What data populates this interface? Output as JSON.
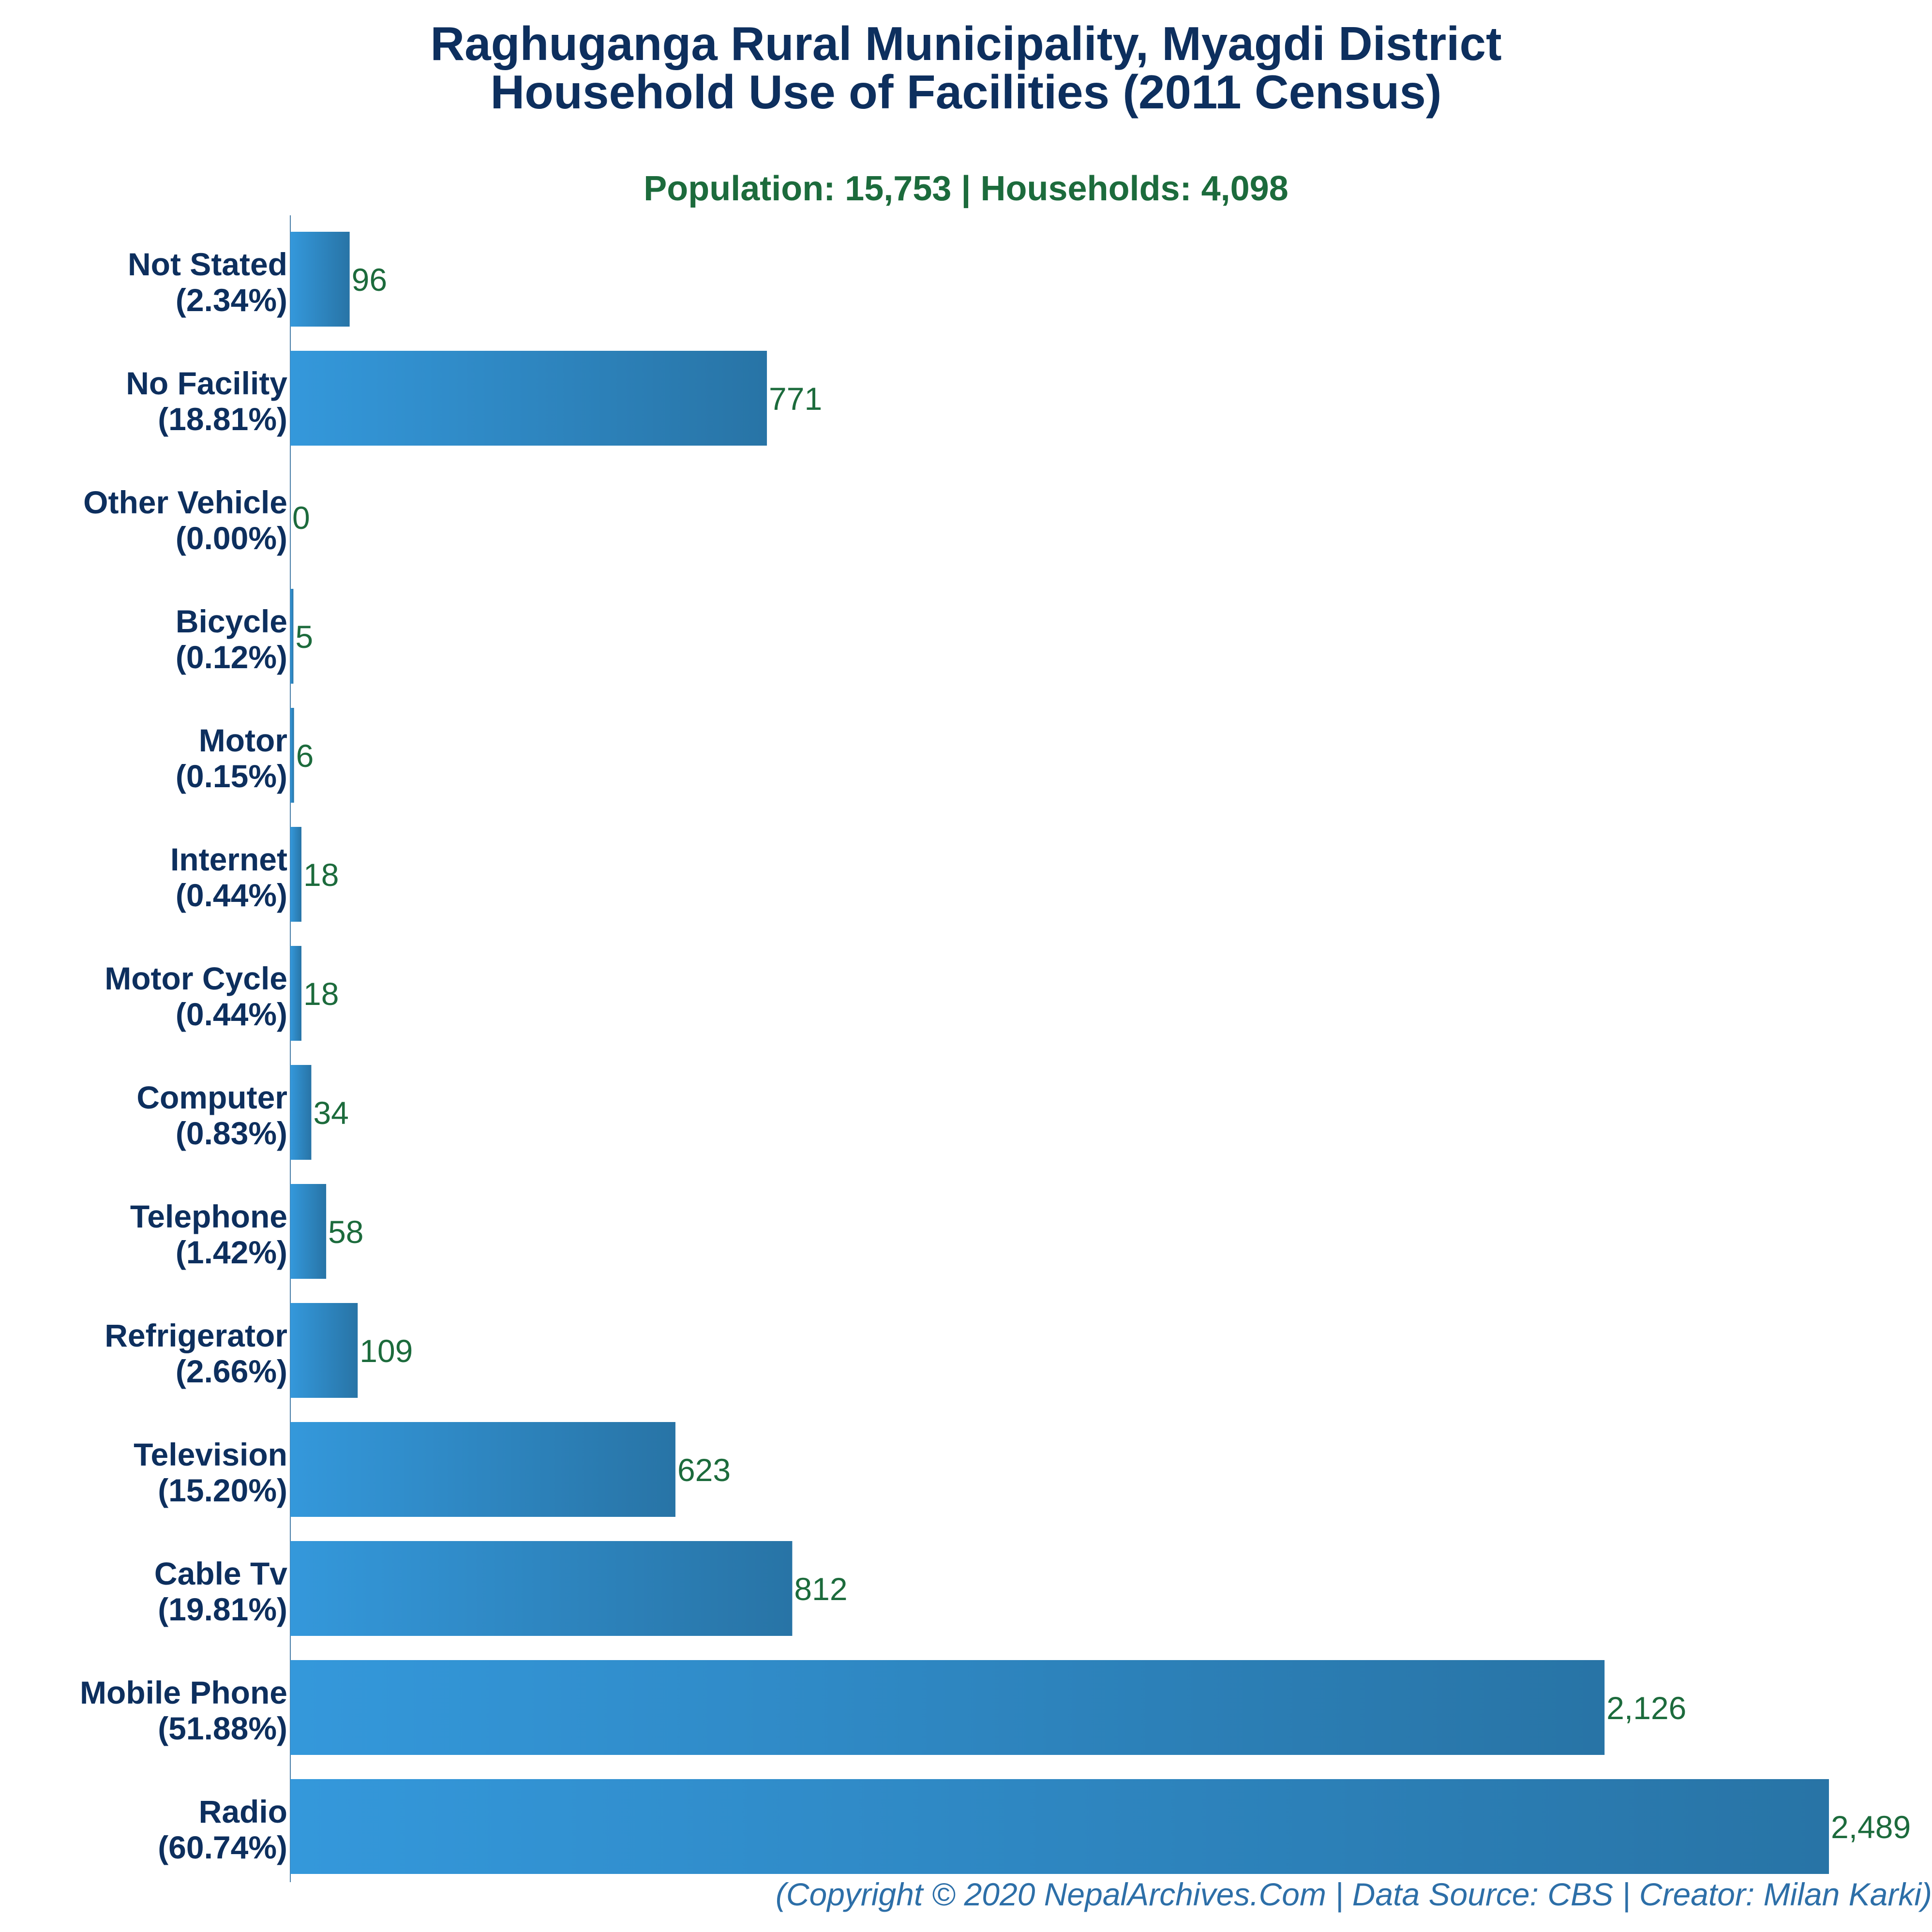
{
  "header": {
    "title_line1": "Raghuganga Rural Municipality, Myagdi District",
    "title_line2": "Household Use of Facilities (2011 Census)",
    "subtitle": "Population: 15,753 | Households: 4,098"
  },
  "footer": {
    "credit": "(Copyright © 2020 NepalArchives.Com | Data Source: CBS | Creator: Milan Karki)"
  },
  "colors": {
    "bar_light": "#3498db",
    "bar_dark": "#2874a6",
    "category_text": "#0d2f5e",
    "value_text": "#1c6b3c",
    "axis": "#4a7fa8"
  },
  "chart_data": {
    "type": "bar",
    "orientation": "horizontal",
    "categories": [
      "Not Stated",
      "No Facility",
      "Other Vehicle",
      "Bicycle",
      "Motor",
      "Internet",
      "Motor Cycle",
      "Computer",
      "Telephone",
      "Refrigerator",
      "Television",
      "Cable Tv",
      "Mobile Phone",
      "Radio"
    ],
    "percent_labels": [
      "(2.34%)",
      "(18.81%)",
      "(0.00%)",
      "(0.12%)",
      "(0.15%)",
      "(0.44%)",
      "(0.44%)",
      "(0.83%)",
      "(1.42%)",
      "(2.66%)",
      "(15.20%)",
      "(19.81%)",
      "(51.88%)",
      "(60.74%)"
    ],
    "values": [
      96,
      771,
      0,
      5,
      6,
      18,
      18,
      34,
      58,
      109,
      623,
      812,
      2126,
      2489
    ],
    "value_labels": [
      "96",
      "771",
      "0",
      "5",
      "6",
      "18",
      "18",
      "34",
      "58",
      "109",
      "623",
      "812",
      "2,126",
      "2,489"
    ],
    "xlim": [
      0,
      2489
    ],
    "grid": false,
    "legend": "none"
  }
}
